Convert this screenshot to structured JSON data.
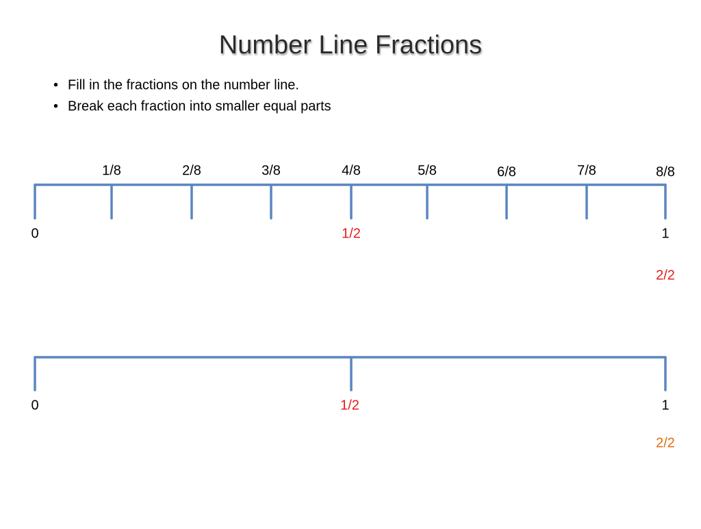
{
  "title": "Number Line Fractions",
  "bullets": [
    "Fill in the fractions on the number line.",
    "Break each fraction into smaller equal parts"
  ],
  "line1": {
    "top_labels": [
      "1/8",
      "2/8",
      "3/8",
      "4/8",
      "5/8",
      "6/8",
      "7/8",
      "8/8"
    ],
    "bottom_labels": [
      "0",
      "1/2",
      "1"
    ],
    "extra_label": "2/2"
  },
  "line2": {
    "bottom_labels": [
      "0",
      "1/2",
      "1"
    ],
    "extra_label": "2/2"
  }
}
